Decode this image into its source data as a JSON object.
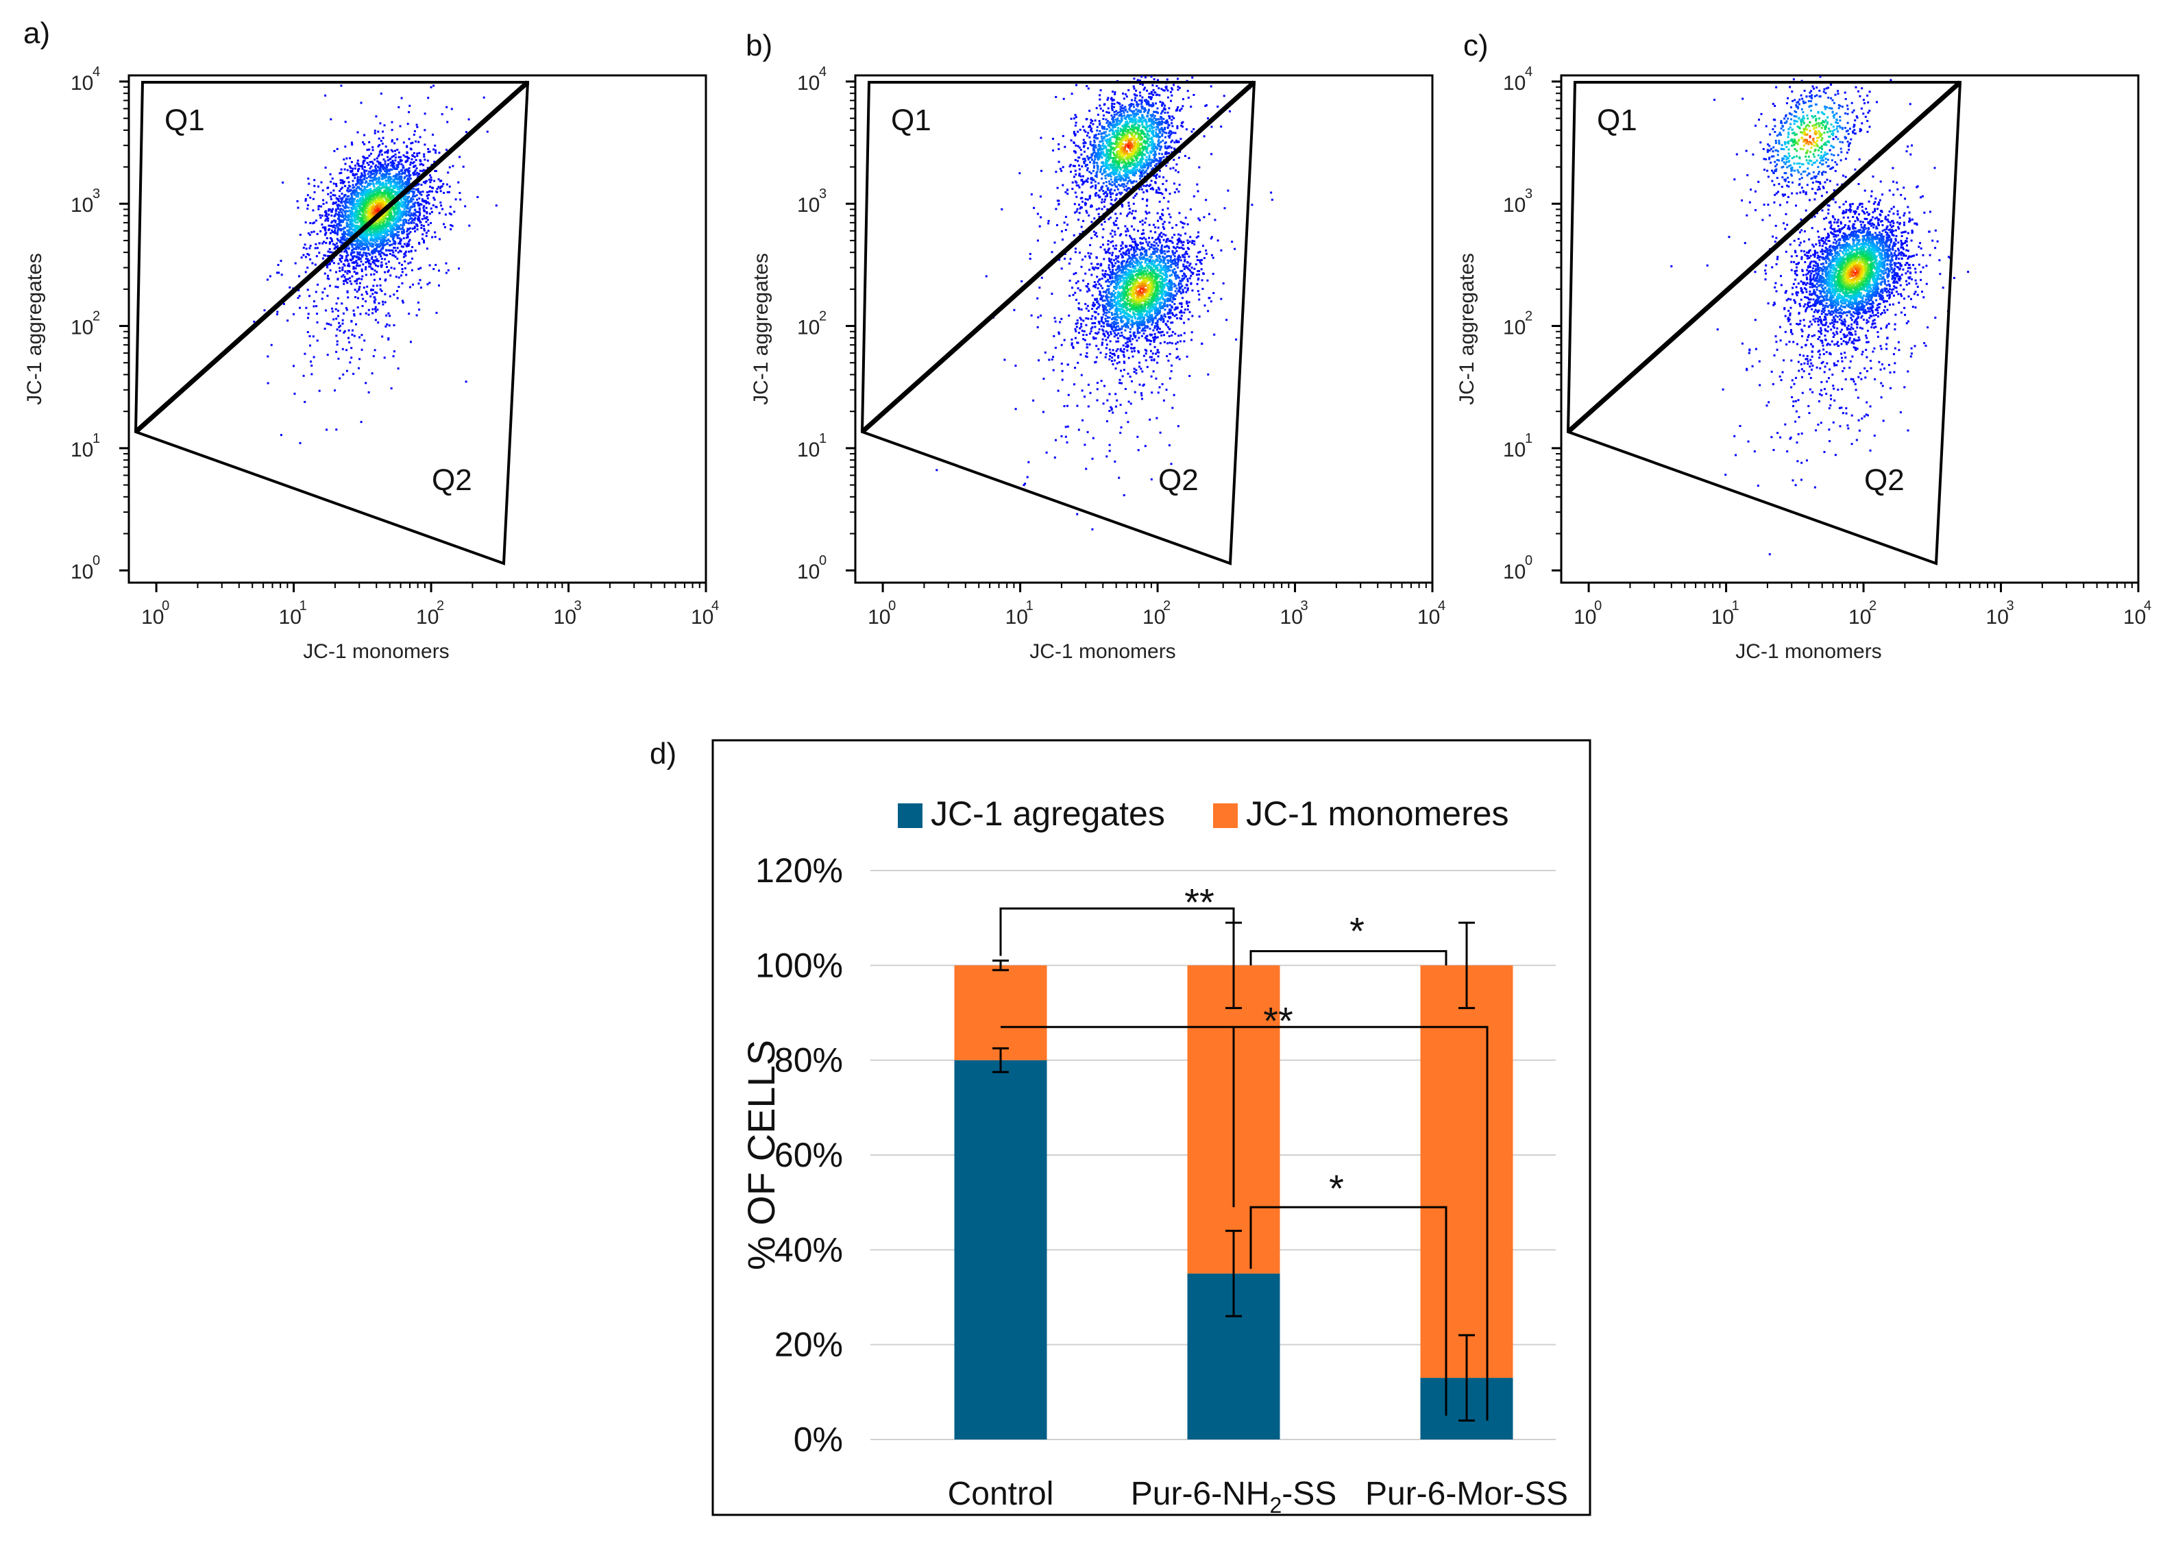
{
  "panels": {
    "a": {
      "letter": "a)",
      "q1": "Q1",
      "q2": "Q2",
      "xlabel": "JC-1 monomers",
      "ylabel": "JC-1 aggregates",
      "ticks": [
        "10",
        "10",
        "10",
        "10",
        "10"
      ],
      "exponents": [
        "0",
        "1",
        "2",
        "3",
        "4"
      ]
    },
    "b": {
      "letter": "b)",
      "q1": "Q1",
      "q2": "Q2",
      "xlabel": "JC-1 monomers",
      "ylabel": "JC-1 aggregates",
      "ticks": [
        "10",
        "10",
        "10",
        "10",
        "10"
      ],
      "exponents": [
        "0",
        "1",
        "2",
        "3",
        "4"
      ]
    },
    "c": {
      "letter": "c)",
      "q1": "Q1",
      "q2": "Q2",
      "xlabel": "JC-1 monomers",
      "ylabel": "JC-1 aggregates",
      "ticks": [
        "10",
        "10",
        "10",
        "10",
        "10"
      ],
      "exponents": [
        "0",
        "1",
        "2",
        "3",
        "4"
      ]
    }
  },
  "chart_data": [
    {
      "type": "scatter",
      "panel": "a",
      "title": "",
      "xlabel": "JC-1 monomers",
      "ylabel": "JC-1 aggregates",
      "xscale": "log",
      "yscale": "log",
      "xlim": [
        1,
        10000
      ],
      "ylim": [
        1,
        10000
      ],
      "gate_labels": [
        "Q1",
        "Q2"
      ],
      "populations": [
        {
          "label": "main",
          "center": [
            40,
            900
          ],
          "count": 3500
        }
      ]
    },
    {
      "type": "scatter",
      "panel": "b",
      "title": "",
      "xlabel": "JC-1 monomers",
      "ylabel": "JC-1 aggregates",
      "xscale": "log",
      "yscale": "log",
      "xlim": [
        1,
        10000
      ],
      "ylim": [
        1,
        10000
      ],
      "gate_labels": [
        "Q1",
        "Q2"
      ],
      "populations": [
        {
          "label": "upper",
          "center": [
            60,
            3000
          ],
          "count": 2200
        },
        {
          "label": "lower",
          "center": [
            75,
            200
          ],
          "count": 2600
        }
      ]
    },
    {
      "type": "scatter",
      "panel": "c",
      "title": "",
      "xlabel": "JC-1 monomers",
      "ylabel": "JC-1 aggregates",
      "xscale": "log",
      "yscale": "log",
      "xlim": [
        1,
        10000
      ],
      "ylim": [
        1,
        10000
      ],
      "gate_labels": [
        "Q1",
        "Q2"
      ],
      "populations": [
        {
          "label": "upper",
          "center": [
            40,
            3500
          ],
          "count": 700
        },
        {
          "label": "main",
          "center": [
            85,
            280
          ],
          "count": 3500
        }
      ]
    },
    {
      "type": "bar",
      "panel": "d",
      "stacked": true,
      "letter": "d)",
      "categories": [
        "Control",
        "Pur-6-NH",
        "Pur-6-Mor-SS"
      ],
      "category_sub": [
        "",
        "2",
        ""
      ],
      "category_suffix": [
        "",
        "-SS",
        ""
      ],
      "series": [
        {
          "name": "JC-1 agregates",
          "color": "#005f87",
          "values": [
            80,
            35,
            13
          ],
          "errors": [
            2.5,
            9,
            9
          ]
        },
        {
          "name": "JC-1 monomeres",
          "color": "#ff7728",
          "values": [
            20,
            65,
            87
          ],
          "errors": [
            1,
            9,
            9
          ]
        }
      ],
      "ylabel": "% OF CELLS",
      "ylim": [
        0,
        120
      ],
      "yticks": [
        "0%",
        "20%",
        "40%",
        "60%",
        "80%",
        "100%",
        "120%"
      ],
      "significance": [
        "**",
        "*",
        "**",
        "*"
      ]
    }
  ]
}
